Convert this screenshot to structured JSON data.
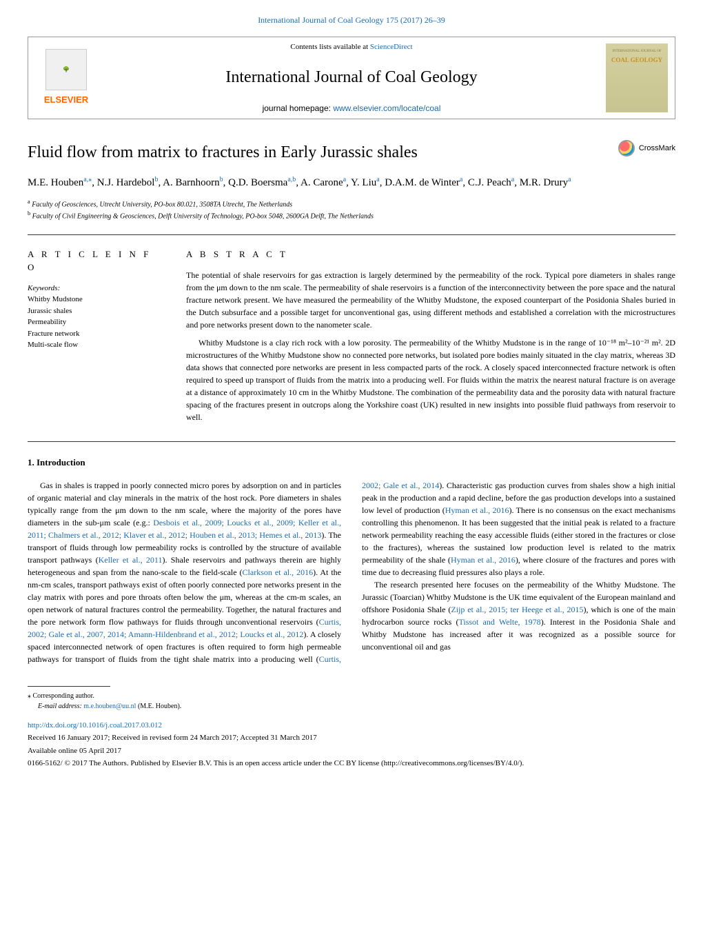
{
  "topLink": {
    "journal": "International Journal of Coal Geology",
    "ref": "175 (2017) 26–39"
  },
  "header": {
    "contentsPrefix": "Contents lists available at",
    "contentsLink": "ScienceDirect",
    "journalTitle": "International Journal of Coal Geology",
    "homepagePrefix": "journal homepage:",
    "homepageUrl": "www.elsevier.com/locate/coal",
    "publisherName": "ELSEVIER",
    "coverText": "COAL GEOLOGY"
  },
  "crossmark": {
    "label": "CrossMark"
  },
  "article": {
    "title": "Fluid flow from matrix to fractures in Early Jurassic shales",
    "authors": [
      {
        "name": "M.E. Houben",
        "aff": "a,",
        "corr": "⁎"
      },
      {
        "name": "N.J. Hardebol",
        "aff": "b"
      },
      {
        "name": "A. Barnhoorn",
        "aff": "b"
      },
      {
        "name": "Q.D. Boersma",
        "aff": "a,b"
      },
      {
        "name": "A. Carone",
        "aff": "a"
      },
      {
        "name": "Y. Liu",
        "aff": "a"
      },
      {
        "name": "D.A.M. de Winter",
        "aff": "a"
      },
      {
        "name": "C.J. Peach",
        "aff": "a"
      },
      {
        "name": "M.R. Drury",
        "aff": "a"
      }
    ],
    "affiliations": {
      "a": "Faculty of Geosciences, Utrecht University, PO-box 80.021, 3508TA Utrecht, The Netherlands",
      "b": "Faculty of Civil Engineering & Geosciences, Delft University of Technology, PO-box 5048, 2600GA Delft, The Netherlands"
    }
  },
  "info": {
    "heading": "A R T I C L E  I N F O",
    "keywordsLabel": "Keywords:",
    "keywords": [
      "Whitby Mudstone",
      "Jurassic shales",
      "Permeability",
      "Fracture network",
      "Multi-scale flow"
    ]
  },
  "abstract": {
    "heading": "A B S T R A C T",
    "p1": "The potential of shale reservoirs for gas extraction is largely determined by the permeability of the rock. Typical pore diameters in shales range from the μm down to the nm scale. The permeability of shale reservoirs is a function of the interconnectivity between the pore space and the natural fracture network present. We have measured the permeability of the Whitby Mudstone, the exposed counterpart of the Posidonia Shales buried in the Dutch subsurface and a possible target for unconventional gas, using different methods and established a correlation with the microstructures and pore networks present down to the nanometer scale.",
    "p2": "Whitby Mudstone is a clay rich rock with a low porosity. The permeability of the Whitby Mudstone is in the range of 10⁻¹⁸ m²–10⁻²¹ m². 2D microstructures of the Whitby Mudstone show no connected pore networks, but isolated pore bodies mainly situated in the clay matrix, whereas 3D data shows that connected pore networks are present in less compacted parts of the rock. A closely spaced interconnected fracture network is often required to speed up transport of fluids from the matrix into a producing well. For fluids within the matrix the nearest natural fracture is on average at a distance of approximately 10 cm in the Whitby Mudstone. The combination of the permeability data and the porosity data with natural fracture spacing of the fractures present in outcrops along the Yorkshire coast (UK) resulted in new insights into possible fluid pathways from reservoir to well."
  },
  "intro": {
    "heading": "1. Introduction",
    "body": "Gas in shales is trapped in poorly connected micro pores by adsorption on and in particles of organic material and clay minerals in the matrix of the host rock. Pore diameters in shales typically range from the μm down to the nm scale, where the majority of the pores have diameters in the sub-μm scale (e.g.: <span class=\"blue-link\">Desbois et al., 2009; Loucks et al., 2009; Keller et al., 2011; Chalmers et al., 2012; Klaver et al., 2012; Houben et al., 2013; Hemes et al., 2013</span>). The transport of fluids through low permeability rocks is controlled by the structure of available transport pathways (<span class=\"blue-link\">Keller et al., 2011</span>). Shale reservoirs and pathways therein are highly heterogeneous and span from the nano-scale to the field-scale (<span class=\"blue-link\">Clarkson et al., 2016</span>). At the nm-cm scales, transport pathways exist of often poorly connected pore networks present in the clay matrix with pores and pore throats often below the μm, whereas at the cm-m scales, an open network of natural fractures control the permeability. Together, the natural fractures and the pore network form flow pathways for fluids through unconventional reservoirs (<span class=\"blue-link\">Curtis, 2002; Gale et al., 2007, 2014; Amann-Hildenbrand et al., 2012; Loucks et al., 2012</span>). A closely spaced interconnected network of open fractures is often required to form high permeable pathways for transport of fluids from the tight shale matrix into a producing well (<span class=\"blue-link\">Curtis, 2002; Gale et al., 2014</span>). Characteristic gas production curves from shales show a high initial peak in the production and a rapid decline, before the gas production develops into a sustained low level of production (<span class=\"blue-link\">Hyman et al., 2016</span>). There is no consensus on the exact mechanisms controlling this phenomenon. It has been suggested that the initial peak is related to a fracture network permeability reaching the easy accessible fluids (either stored in the fractures or close to the fractures), whereas the sustained low production level is related to the matrix permeability of the shale (<span class=\"blue-link\">Hyman et al., 2016</span>), where closure of the fractures and pores with time due to decreasing fluid pressures also plays a role.",
    "p2": "The research presented here focuses on the permeability of the Whitby Mudstone. The Jurassic (Toarcian) Whitby Mudstone is the UK time equivalent of the European mainland and offshore Posidonia Shale (<span class=\"blue-link\">Zijp et al., 2015; ter Heege et al., 2015</span>), which is one of the main hydrocarbon source rocks (<span class=\"blue-link\">Tissot and Welte, 1978</span>). Interest in the Posidonia Shale and Whitby Mudstone has increased after it was recognized as a possible source for unconventional oil and gas"
  },
  "footnotes": {
    "corr": "⁎ Corresponding author.",
    "emailLabel": "E-mail address:",
    "email": "m.e.houben@uu.nl",
    "emailSuffix": "(M.E. Houben).",
    "doi": "http://dx.doi.org/10.1016/j.coal.2017.03.012",
    "received": "Received 16 January 2017; Received in revised form 24 March 2017; Accepted 31 March 2017",
    "available": "Available online 05 April 2017",
    "copyright": "0166-5162/ © 2017 The Authors. Published by Elsevier B.V. This is an open access article under the CC BY license (http://creativecommons.org/licenses/BY/4.0/)."
  }
}
